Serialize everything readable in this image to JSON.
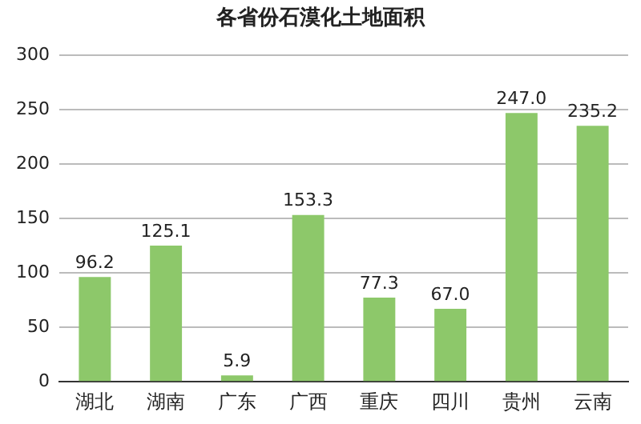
{
  "chart_data": {
    "type": "bar",
    "title": "各省份石漠化土地面积",
    "categories": [
      "湖北",
      "湖南",
      "广东",
      "广西",
      "重庆",
      "四川",
      "贵州",
      "云南"
    ],
    "values": [
      96.2,
      125.1,
      5.9,
      153.3,
      77.3,
      67.0,
      247.0,
      235.2
    ],
    "value_labels": [
      "96.2",
      "125.1",
      "5.9",
      "153.3",
      "77.3",
      "67.0",
      "247.0",
      "235.2"
    ],
    "color": "#8dc86a",
    "ylim": [
      0,
      300
    ],
    "yticks": [
      0,
      50,
      100,
      150,
      200,
      250,
      300
    ],
    "grid": "y",
    "legend": false
  }
}
